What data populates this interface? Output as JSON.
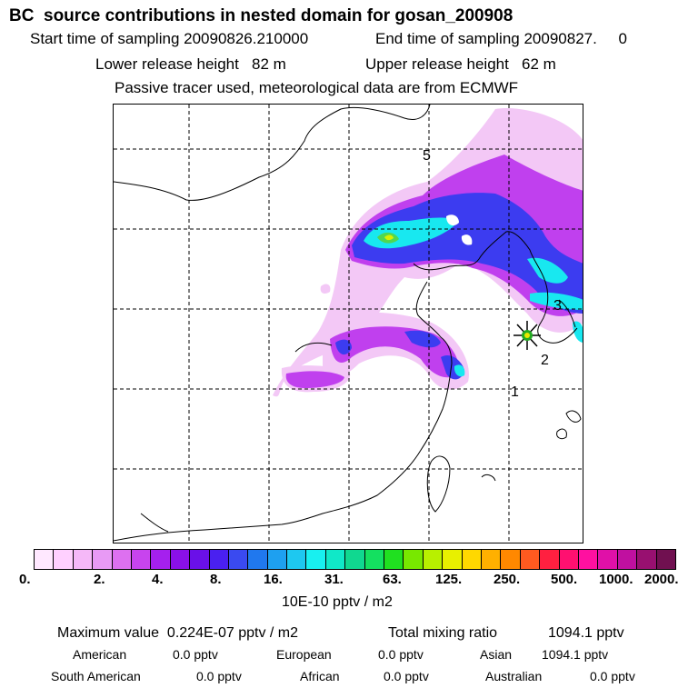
{
  "header": {
    "title": "BC  source contributions in nested domain for gosan_200908",
    "start_label": "Start time of sampling 20090826.210000",
    "end_label": "End time of sampling 20090827.     0",
    "lower_label": "Lower release height   82 m",
    "upper_label": "Upper release height   62 m",
    "tracer_note": "Passive tracer used, meteorological data are from ECMWF"
  },
  "map": {
    "markers": [
      {
        "label": "5"
      },
      {
        "label": "3"
      },
      {
        "label": "2"
      },
      {
        "label": "1"
      }
    ],
    "station_marker_color": "#22aa22"
  },
  "colorbar": {
    "colors": [
      "#ffe8ff",
      "#ffd0ff",
      "#f5b8f8",
      "#e89af5",
      "#dd70f0",
      "#c844ee",
      "#a520ee",
      "#8a10e8",
      "#6a10e8",
      "#4a20f0",
      "#3a4af0",
      "#2078ee",
      "#1ea0f0",
      "#1ec8f0",
      "#18f0f0",
      "#10e8c8",
      "#10d890",
      "#14e060",
      "#20e020",
      "#78e800",
      "#b8f000",
      "#e8f000",
      "#ffd800",
      "#ffb000",
      "#ff8800",
      "#ff5a20",
      "#ff2040",
      "#ff1070",
      "#ff10a0",
      "#e010a8",
      "#c010a0",
      "#981070",
      "#701050"
    ],
    "ticks": [
      "0.",
      "2.",
      "4.",
      "8.",
      "16.",
      "31.",
      "63.",
      "125.",
      "250.",
      "500.",
      "1000.",
      "2000."
    ],
    "unit": "10E-10 pptv / m2"
  },
  "summary": {
    "max_label": "Maximum value  0.224E-07 pptv / m2",
    "total_label": "Total mixing ratio",
    "total_value": "1094.1 pptv",
    "rows": [
      {
        "name": "American",
        "value": "0.0 pptv"
      },
      {
        "name": "European",
        "value": "0.0 pptv"
      },
      {
        "name": "Asian",
        "value": "1094.1 pptv"
      },
      {
        "name": "South American",
        "value": "0.0 pptv"
      },
      {
        "name": "African",
        "value": "0.0 pptv"
      },
      {
        "name": "Australian",
        "value": "0.0 pptv"
      }
    ]
  }
}
